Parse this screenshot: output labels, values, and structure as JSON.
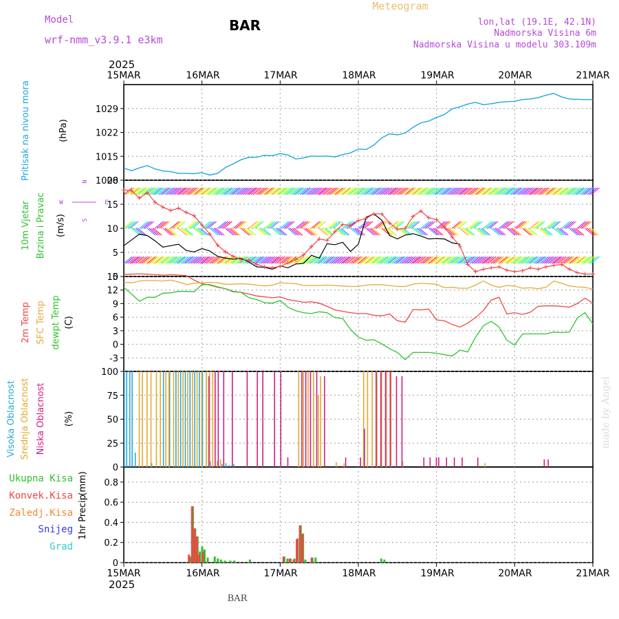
{
  "header": {
    "model_label": "Model",
    "model_name": "wrf-nmm_v3.9.1 e3km",
    "station": "BAR",
    "title": "Meteogram",
    "lonlat": "lon,lat (19.1E, 42.1N)",
    "elevation": "Nadmorska Visina 6m",
    "model_elevation": "Nadmorska Visina u modelu 303.109m"
  },
  "footer": {
    "station": "BAR",
    "credit": "made by Angel"
  },
  "colors": {
    "pressure": "#1ea7e1",
    "temp": "#f04545",
    "sfc": "#e8a93a",
    "dewpt": "#2ec22e",
    "high_cloud": "#2aa8d8",
    "mid_cloud": "#e2a92e",
    "low_cloud": "#d01d82",
    "rain_total": "#2ec22e",
    "rain_conv": "#f04545",
    "snow": "#3a3ad8",
    "hail": "#2ecdc8",
    "freezing": "#f08a30",
    "wind_dir": "#b44ad8"
  },
  "time_axis": {
    "year": "2025",
    "ticks": [
      "15MAR",
      "16MAR",
      "17MAR",
      "18MAR",
      "19MAR",
      "20MAR",
      "21MAR"
    ]
  },
  "chart_data": [
    {
      "type": "line",
      "panel": "pressure",
      "ylabel": "Pritisak na nivou mora",
      "unit": "(hPa)",
      "ylim": [
        1008,
        1036
      ],
      "yticks": [
        "1008",
        "1015",
        "1022",
        "1029"
      ],
      "x": [
        0,
        0.1,
        0.2,
        0.3,
        0.4,
        0.5,
        0.6,
        0.7,
        0.8,
        0.9,
        1.0,
        1.1,
        1.2,
        1.3,
        1.4,
        1.5,
        1.6,
        1.7,
        1.8,
        1.9,
        2.0,
        2.1,
        2.2,
        2.3,
        2.4,
        2.5,
        2.6,
        2.7,
        2.8,
        2.9,
        3.0,
        3.1,
        3.2,
        3.3,
        3.4,
        3.5,
        3.6,
        3.7,
        3.8,
        3.9,
        4.0,
        4.1,
        4.2,
        4.3,
        4.4,
        4.5,
        4.6,
        4.7,
        4.8,
        4.9,
        5.0,
        5.1,
        5.2,
        5.3,
        5.4,
        5.5,
        5.6,
        5.7,
        5.8,
        5.9,
        6.0
      ],
      "values": [
        1011.5,
        1010.8,
        1011.6,
        1012.3,
        1011.3,
        1010.7,
        1010.5,
        1010.0,
        1010.0,
        1009.9,
        1010.2,
        1009.5,
        1010.0,
        1011.7,
        1012.8,
        1014.0,
        1014.7,
        1014.7,
        1015.3,
        1015.2,
        1015.8,
        1015.4,
        1014.2,
        1014.5,
        1015.1,
        1015.0,
        1015.1,
        1014.8,
        1015.5,
        1016.0,
        1017.1,
        1017.0,
        1018.3,
        1020.4,
        1021.6,
        1021.3,
        1021.8,
        1023.5,
        1024.8,
        1025.3,
        1026.4,
        1027.2,
        1028.9,
        1029.5,
        1030.3,
        1030.8,
        1030.1,
        1030.4,
        1030.8,
        1031.0,
        1031.1,
        1031.6,
        1031.8,
        1032.2,
        1032.9,
        1033.4,
        1032.4,
        1031.8,
        1031.7,
        1031.6,
        1031.6
      ]
    },
    {
      "type": "line",
      "panel": "wind",
      "ylabel": "10m Vjetar",
      "ylabel2": "Brzina i Pravac",
      "unit": "(m/s)",
      "ylim": [
        0,
        20
      ],
      "yticks": [
        "0",
        "5",
        "10",
        "15",
        "20"
      ],
      "compass": [
        "W",
        "S",
        "N",
        "E"
      ],
      "series": [
        {
          "name": "speed",
          "x": [
            0,
            0.1,
            0.2,
            0.3,
            0.4,
            0.5,
            0.6,
            0.7,
            0.8,
            0.9,
            1.0,
            1.1,
            1.2,
            1.3,
            1.4,
            1.5,
            1.6,
            1.7,
            1.8,
            1.9,
            2.0,
            2.1,
            2.2,
            2.3,
            2.4,
            2.5,
            2.6,
            2.7,
            2.8,
            2.9,
            3.0,
            3.1,
            3.2,
            3.3,
            3.4,
            3.5,
            3.6,
            3.7,
            3.8,
            3.9,
            4.0,
            4.1,
            4.2,
            4.3
          ],
          "values": [
            6.4,
            7.6,
            8.8,
            8.5,
            7.4,
            6.1,
            6.4,
            6.7,
            5.4,
            5.1,
            5.8,
            5.3,
            4.2,
            3.8,
            3.6,
            3.8,
            3.0,
            2.0,
            1.9,
            1.5,
            2.2,
            1.8,
            2.6,
            2.7,
            4.4,
            3.8,
            6.8,
            6.6,
            7.1,
            5.2,
            6.7,
            12.3,
            13.0,
            11.7,
            8.5,
            7.8,
            8.6,
            8.9,
            8.4,
            7.8,
            7.9,
            7.8,
            7.0,
            6.7
          ]
        },
        {
          "name": "direction",
          "x": [
            0,
            0.1,
            0.2,
            0.3,
            0.4,
            0.5,
            0.6,
            0.7,
            0.8,
            0.9,
            1.0,
            1.1,
            1.2,
            1.3,
            1.4,
            1.5,
            1.6,
            1.7,
            1.8,
            1.9,
            2.0,
            2.1,
            2.2,
            2.3,
            2.4,
            2.5,
            2.6,
            2.7,
            2.8,
            2.9,
            3.0,
            3.1,
            3.2,
            3.3,
            3.4,
            3.5,
            3.6,
            3.7,
            3.8,
            3.9,
            4.0,
            4.1,
            4.2,
            4.3,
            4.4,
            4.5,
            4.6,
            4.7,
            4.8,
            4.9,
            5.0,
            5.1,
            5.2,
            5.3,
            5.4,
            5.5,
            5.6,
            5.7,
            5.8,
            5.9,
            6.0
          ],
          "values": [
            18.0,
            17.8,
            16.3,
            17.4,
            15.4,
            14.4,
            13.7,
            14.2,
            13.3,
            12.6,
            10.7,
            8.8,
            6.5,
            5.1,
            4.2,
            3.5,
            3.4,
            2.5,
            2.0,
            1.8,
            2.1,
            2.8,
            3.5,
            4.5,
            6.2,
            7.8,
            7.5,
            9.3,
            10.8,
            10.6,
            11.6,
            12.1,
            13.0,
            13.0,
            11.1,
            9.8,
            10.0,
            12.5,
            13.6,
            12.2,
            11.8,
            10.3,
            8.2,
            6.3,
            2.5,
            1.0,
            1.5,
            1.8,
            2.0,
            1.3,
            1.0,
            1.2,
            1.8,
            1.5,
            2.0,
            2.3,
            2.5,
            1.5,
            0.8,
            0.5,
            0.5
          ]
        }
      ]
    },
    {
      "type": "line",
      "panel": "temperature",
      "ylabel1": "2m Temp",
      "ylabel2": "SFC Temp",
      "ylabel3": "dewpt Temp",
      "unit": "(C)",
      "ylim": [
        -6,
        15
      ],
      "yticks": [
        "-3",
        "0",
        "3",
        "6",
        "9",
        "12",
        "15"
      ],
      "x": [
        0,
        0.1,
        0.2,
        0.3,
        0.4,
        0.5,
        0.6,
        0.7,
        0.8,
        0.9,
        1.0,
        1.1,
        1.2,
        1.3,
        1.4,
        1.5,
        1.6,
        1.7,
        1.8,
        1.9,
        2.0,
        2.1,
        2.2,
        2.3,
        2.4,
        2.5,
        2.6,
        2.7,
        2.8,
        2.9,
        3.0,
        3.1,
        3.2,
        3.3,
        3.4,
        3.5,
        3.6,
        3.7,
        3.8,
        3.9,
        4.0,
        4.1,
        4.2,
        4.3,
        4.4,
        4.5,
        4.6,
        4.7,
        4.8,
        4.9,
        5.0,
        5.1,
        5.2,
        5.3,
        5.4,
        5.5,
        5.6,
        5.7,
        5.8,
        5.9,
        6.0
      ],
      "series": [
        {
          "name": "2m Temp",
          "values": [
            15.5,
            15.5,
            15.6,
            15.5,
            15.4,
            15.3,
            15.4,
            15.3,
            15.2,
            14.2,
            13.4,
            13.1,
            12.6,
            12.3,
            11.7,
            11.5,
            11.1,
            10.7,
            10.5,
            10.3,
            10.5,
            9.9,
            9.6,
            9.3,
            9.4,
            9.1,
            8.4,
            7.6,
            7.3,
            7.0,
            6.8,
            6.8,
            6.4,
            6.3,
            6.7,
            5.2,
            4.9,
            7.7,
            7.6,
            7.8,
            5.4,
            5.2,
            4.4,
            3.8,
            4.7,
            5.9,
            7.5,
            9.8,
            10.4,
            6.7,
            7.0,
            6.6,
            7.1,
            8.4,
            8.5,
            8.5,
            8.4,
            8.2,
            9.0,
            10.2,
            9.1
          ]
        },
        {
          "name": "SFC Temp",
          "values": [
            13.7,
            13.6,
            14.0,
            14.1,
            14.1,
            14.0,
            14.2,
            13.8,
            13.2,
            13.5,
            13.6,
            13.7,
            13.6,
            13.3,
            13.3,
            13.4,
            13.3,
            13.1,
            12.9,
            13.1,
            13.6,
            13.5,
            13.4,
            13.0,
            13.0,
            13.0,
            13.1,
            13.0,
            12.9,
            12.8,
            12.8,
            13.1,
            13.2,
            13.2,
            13.0,
            12.8,
            12.8,
            13.3,
            13.5,
            13.4,
            13.3,
            12.5,
            12.6,
            12.4,
            12.4,
            13.1,
            14.0,
            13.1,
            12.6,
            13.0,
            12.9,
            12.4,
            12.5,
            12.3,
            12.6,
            14.0,
            13.5,
            12.9,
            12.7,
            12.6,
            12.2
          ]
        },
        {
          "name": "dewpt Temp",
          "values": [
            12.6,
            11.1,
            9.5,
            10.4,
            10.4,
            11.3,
            11.4,
            11.7,
            11.7,
            11.6,
            13.2,
            13.2,
            12.7,
            12.3,
            11.6,
            11.5,
            10.3,
            9.9,
            9.2,
            9.1,
            9.7,
            8.2,
            7.4,
            7.0,
            6.8,
            7.2,
            7.0,
            5.9,
            5.7,
            3.3,
            1.6,
            0.9,
            1.0,
            0.1,
            -1.0,
            -1.8,
            -3.4,
            -1.8,
            -1.8,
            -1.8,
            -2.0,
            -2.3,
            -2.6,
            -1.3,
            -1.7,
            1.6,
            4.1,
            5.1,
            3.8,
            0.9,
            -0.2,
            2.3,
            2.3,
            2.3,
            2.3,
            2.7,
            2.6,
            2.7,
            5.8,
            7.0,
            4.5
          ]
        }
      ]
    },
    {
      "type": "bar",
      "panel": "cloud",
      "ylabel1": "Visoka Oblacnost",
      "ylabel2": "Srednja Oblacnost",
      "ylabel3": "Niska Oblacnost",
      "unit": "(%)",
      "ylim": [
        0,
        100
      ],
      "yticks": [
        "0",
        "25",
        "50",
        "75",
        "100"
      ],
      "series": [
        {
          "name": "Visoka",
          "x": [
            0.0,
            0.03,
            0.07,
            0.1,
            0.14,
            0.35,
            0.5,
            0.58,
            0.66,
            0.72,
            0.78,
            0.84,
            0.9,
            0.96,
            1.0,
            1.05,
            1.1,
            1.2,
            1.25,
            1.3,
            1.34,
            1.4
          ],
          "values": [
            100,
            100,
            100,
            100,
            15,
            4,
            100,
            100,
            100,
            100,
            100,
            100,
            100,
            100,
            100,
            100,
            6,
            4,
            3,
            4,
            2,
            3
          ]
        },
        {
          "name": "Srednja",
          "x": [
            0.18,
            0.22,
            0.28,
            0.33,
            0.4,
            0.45,
            0.52,
            0.56,
            0.62,
            0.68,
            0.74,
            0.8,
            0.86,
            0.92,
            0.98,
            1.04,
            1.08,
            1.12,
            1.18,
            1.22,
            1.26,
            2.22,
            2.28,
            2.34,
            2.41,
            2.47,
            2.5,
            2.7,
            2.8,
            3.05,
            3.1,
            3.16,
            3.22,
            3.28,
            3.34,
            3.4,
            3.55,
            4.6
          ],
          "values": [
            100,
            100,
            100,
            100,
            100,
            100,
            100,
            100,
            100,
            100,
            100,
            100,
            100,
            100,
            100,
            100,
            100,
            100,
            6,
            8,
            10,
            100,
            100,
            100,
            100,
            75,
            95,
            5,
            4,
            100,
            100,
            100,
            100,
            100,
            100,
            100,
            6,
            4
          ]
        },
        {
          "name": "Niska",
          "x": [
            1.06,
            1.14,
            1.18,
            1.25,
            1.36,
            1.55,
            1.68,
            1.75,
            1.9,
            1.98,
            2.07,
            2.25,
            2.3,
            2.36,
            2.44,
            2.54,
            2.81,
            3.0,
            3.05,
            3.2,
            3.26,
            3.32,
            3.38,
            3.46,
            3.53,
            3.81,
            3.89,
            3.97,
            4.0,
            4.1,
            4.2,
            4.3,
            4.5,
            5.35,
            5.4
          ],
          "values": [
            95,
            100,
            100,
            100,
            100,
            100,
            100,
            100,
            100,
            100,
            10,
            100,
            100,
            100,
            100,
            95,
            10,
            10,
            40,
            100,
            100,
            100,
            100,
            95,
            95,
            10,
            10,
            10,
            10,
            10,
            10,
            10,
            10,
            8,
            8
          ]
        }
      ]
    },
    {
      "type": "bar",
      "panel": "precip",
      "ylabel": "1hr Precip",
      "unit": "(mm)",
      "ylim": [
        0,
        0.95
      ],
      "yticks": [
        "0",
        "0.2",
        "0.4",
        "0.6",
        "0.8"
      ],
      "legend": [
        "Ukupna Kisa",
        "Konvek.Kisa",
        "Zaledj.Kisa",
        "Snijeg",
        "Grad"
      ],
      "series": [
        {
          "name": "Ukupna Kisa",
          "x": [
            0.84,
            0.87,
            0.9,
            0.93,
            0.96,
            0.99,
            1.02,
            1.06,
            1.15,
            1.19,
            1.23,
            1.28,
            1.35,
            1.4,
            1.6,
            2.04,
            2.08,
            2.12,
            2.17,
            2.21,
            2.25,
            2.28,
            2.31,
            2.4,
            2.44,
            3.28,
            3.32
          ],
          "values": [
            0.06,
            0.56,
            0.34,
            0.26,
            0.11,
            0.16,
            0.13,
            0.05,
            0.06,
            0.04,
            0.03,
            0.02,
            0.02,
            0.02,
            0.03,
            0.06,
            0.04,
            0.04,
            0.04,
            0.24,
            0.37,
            0.29,
            0.03,
            0.05,
            0.05,
            0.04,
            0.03
          ]
        },
        {
          "name": "Konvek.Kisa",
          "x": [
            0.82,
            0.86,
            0.89,
            0.92,
            0.95,
            1.0,
            2.03,
            2.11,
            2.16,
            2.2,
            2.24,
            2.27,
            2.39
          ],
          "values": [
            0.08,
            0.56,
            0.34,
            0.26,
            0.08,
            0.11,
            0.06,
            0.04,
            0.03,
            0.23,
            0.37,
            0.28,
            0.05
          ]
        }
      ]
    }
  ]
}
